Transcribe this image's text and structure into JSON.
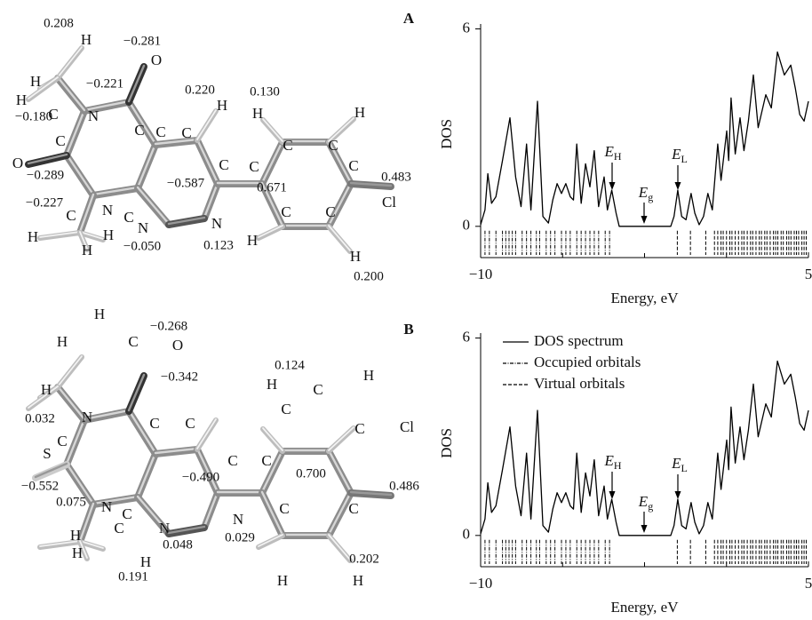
{
  "molecules": [
    {
      "panel": "A",
      "labels": [
        "0.208",
        "H",
        "−0.281",
        "O",
        "H",
        "H",
        "C",
        "−0.221",
        "0.220",
        "H",
        "0.130",
        "H",
        "H",
        "−0.180",
        "N",
        "C",
        "C",
        "C",
        "C",
        "C",
        "C",
        "C",
        "C",
        "C",
        "O",
        "−0.289",
        "−0.587",
        "0.671",
        "0.483",
        "Cl",
        "−0.227",
        "N",
        "C",
        "C",
        "N",
        "N",
        "H",
        "C",
        "C",
        "−0.050",
        "0.123",
        "H",
        "H",
        "H",
        "H",
        "0.200"
      ]
    },
    {
      "panel": "B",
      "labels": [
        "H",
        "−0.268",
        "H",
        "C",
        "O",
        "0.124",
        "H",
        "−0.342",
        "H",
        "H",
        "C",
        "C",
        "C",
        "C",
        "C",
        "Cl",
        "0.032",
        "N",
        "C",
        "S",
        "C",
        "C",
        "−0.490",
        "0.700",
        "0.486",
        "−0.552",
        "0.075",
        "N",
        "C",
        "N",
        "N",
        "C",
        "C",
        "C",
        "H",
        "H",
        "H",
        "0.048",
        "0.029",
        "0.202",
        "H",
        "H",
        "0.191"
      ]
    }
  ],
  "chart_data": [
    {
      "type": "line",
      "ylabel": "DOS",
      "xlabel": "Energy, eV",
      "xlim": [
        -10,
        5
      ],
      "xticks": [
        {
          "value": -10,
          "label": "−10"
        },
        5
      ],
      "xminorticks": [
        -6.25,
        -2.5,
        1.25
      ],
      "ylim": [
        -0.95,
        6.15
      ],
      "yticks": [
        0,
        6
      ],
      "legend": false,
      "x": [
        -10,
        -9.8,
        -9.67,
        -9.5,
        -9.3,
        -9.0,
        -8.66,
        -8.4,
        -8.15,
        -7.9,
        -7.7,
        -7.4,
        -7.15,
        -6.9,
        -6.7,
        -6.5,
        -6.3,
        -6.1,
        -5.9,
        -5.75,
        -5.6,
        -5.4,
        -5.2,
        -5.0,
        -4.8,
        -4.6,
        -4.35,
        -4.2,
        -4.0,
        -3.8,
        -3.66,
        -1.3,
        -1.15,
        -0.98,
        -0.8,
        -0.6,
        -0.37,
        -0.2,
        0,
        0.2,
        0.4,
        0.6,
        0.85,
        1.0,
        1.26,
        1.35,
        1.46,
        1.65,
        1.87,
        2.05,
        2.25,
        2.48,
        2.7,
        3.05,
        3.3,
        3.58,
        3.9,
        4.19,
        4.4,
        4.6,
        4.8,
        5
      ],
      "series": [
        {
          "color": "#000000",
          "values": [
            0.05,
            0.5,
            1.6,
            0.7,
            0.9,
            2.0,
            3.3,
            1.5,
            0.6,
            2.5,
            0.5,
            3.8,
            0.3,
            0.1,
            0.8,
            1.3,
            1.0,
            1.3,
            0.9,
            0.8,
            2.5,
            0.7,
            1.9,
            1.2,
            2.3,
            0.6,
            1.5,
            0.5,
            1.1,
            0.4,
            0,
            0,
            0.3,
            1.1,
            0.3,
            0.2,
            1.0,
            0.4,
            0.05,
            0.3,
            1.0,
            0.5,
            2.5,
            1.4,
            2.9,
            2.0,
            3.9,
            2.2,
            3.3,
            2.3,
            3.2,
            4.6,
            3.0,
            4.0,
            3.6,
            5.3,
            4.6,
            4.9,
            4.2,
            3.4,
            3.2,
            3.8
          ]
        }
      ],
      "orbitals": [
        {
          "color": "#000000",
          "dash": "4,1.5,1,1.5",
          "energies": [
            -9.8,
            -9.6,
            -9.3,
            -9.0,
            -8.85,
            -8.7,
            -8.55,
            -8.4,
            -8.1,
            -7.9,
            -7.7,
            -7.45,
            -7.3,
            -7.0,
            -6.8,
            -6.6,
            -6.3,
            -6.1,
            -5.9,
            -5.6,
            -5.4,
            -5.2,
            -5.0,
            -4.8,
            -4.6,
            -4.3,
            -4.1
          ]
        },
        {
          "color": "#000000",
          "dash": "4,2",
          "energies": [
            -1.0,
            -0.4,
            0.3,
            0.7,
            0.85,
            1.0,
            1.1,
            1.25,
            1.4,
            1.5,
            1.65,
            1.8,
            1.95,
            2.05,
            2.2,
            2.35,
            2.45,
            2.6,
            2.75,
            2.85,
            3.0,
            3.1,
            3.25,
            3.4,
            3.5,
            3.6,
            3.75,
            3.85,
            4.0,
            4.1,
            4.2,
            4.35,
            4.45,
            4.55,
            4.7,
            4.8,
            4.9
          ]
        }
      ],
      "annotations": [
        {
          "text": "E",
          "sub": "H"
        },
        {
          "text": "E",
          "sub": "g"
        },
        {
          "text": "E",
          "sub": "L"
        }
      ]
    },
    {
      "type": "line",
      "ylabel": "DOS",
      "xlabel": "Energy, eV",
      "xlim": [
        -10,
        5
      ],
      "xticks": [
        {
          "value": -10,
          "label": "−10"
        },
        5
      ],
      "xminorticks": [
        -6.25,
        -2.5,
        1.25
      ],
      "ylim": [
        -0.95,
        6.15
      ],
      "yticks": [
        0,
        6
      ],
      "legend": true,
      "x": [
        -10,
        -9.8,
        -9.67,
        -9.5,
        -9.3,
        -9.0,
        -8.66,
        -8.4,
        -8.15,
        -7.9,
        -7.7,
        -7.4,
        -7.15,
        -6.9,
        -6.7,
        -6.5,
        -6.3,
        -6.1,
        -5.9,
        -5.75,
        -5.6,
        -5.4,
        -5.2,
        -5.0,
        -4.8,
        -4.6,
        -4.35,
        -4.2,
        -4.0,
        -3.8,
        -3.66,
        -1.3,
        -1.15,
        -0.98,
        -0.8,
        -0.6,
        -0.37,
        -0.2,
        0,
        0.2,
        0.4,
        0.6,
        0.85,
        1.0,
        1.26,
        1.35,
        1.46,
        1.65,
        1.87,
        2.05,
        2.25,
        2.48,
        2.7,
        3.05,
        3.3,
        3.58,
        3.9,
        4.19,
        4.4,
        4.6,
        4.8,
        5
      ],
      "series": [
        {
          "name": "DOS spectrum",
          "color": "#000000",
          "values": [
            0.05,
            0.5,
            1.6,
            0.7,
            0.9,
            2.0,
            3.3,
            1.5,
            0.6,
            2.5,
            0.5,
            3.8,
            0.3,
            0.1,
            0.8,
            1.3,
            1.0,
            1.3,
            0.9,
            0.8,
            2.5,
            0.7,
            1.9,
            1.2,
            2.3,
            0.6,
            1.5,
            0.5,
            1.1,
            0.4,
            0,
            0,
            0.3,
            1.1,
            0.3,
            0.2,
            1.0,
            0.4,
            0.05,
            0.3,
            1.0,
            0.5,
            2.5,
            1.4,
            2.9,
            2.0,
            3.9,
            2.2,
            3.3,
            2.3,
            3.2,
            4.6,
            3.0,
            4.0,
            3.6,
            5.3,
            4.6,
            4.9,
            4.2,
            3.4,
            3.2,
            3.8
          ]
        }
      ],
      "orbitals": [
        {
          "name": "Occupied orbitals",
          "color": "#000000",
          "dash": "4,1.5,1,1.5",
          "energies": [
            -9.8,
            -9.6,
            -9.3,
            -9.0,
            -8.85,
            -8.7,
            -8.55,
            -8.4,
            -8.1,
            -7.9,
            -7.7,
            -7.45,
            -7.3,
            -7.0,
            -6.8,
            -6.6,
            -6.3,
            -6.1,
            -5.9,
            -5.6,
            -5.4,
            -5.2,
            -5.0,
            -4.8,
            -4.6,
            -4.3,
            -4.1
          ]
        },
        {
          "name": "Virtual orbitals",
          "color": "#000000",
          "dash": "4,2",
          "energies": [
            -1.0,
            -0.4,
            0.3,
            0.7,
            0.85,
            1.0,
            1.1,
            1.25,
            1.4,
            1.5,
            1.65,
            1.8,
            1.95,
            2.05,
            2.2,
            2.35,
            2.45,
            2.6,
            2.75,
            2.85,
            3.0,
            3.1,
            3.25,
            3.4,
            3.5,
            3.6,
            3.75,
            3.85,
            4.0,
            4.1,
            4.2,
            4.35,
            4.45,
            4.55,
            4.7,
            4.8,
            4.9
          ]
        }
      ],
      "annotations": [
        {
          "text": "E",
          "sub": "H"
        },
        {
          "text": "E",
          "sub": "g"
        },
        {
          "text": "E",
          "sub": "L"
        }
      ]
    }
  ]
}
